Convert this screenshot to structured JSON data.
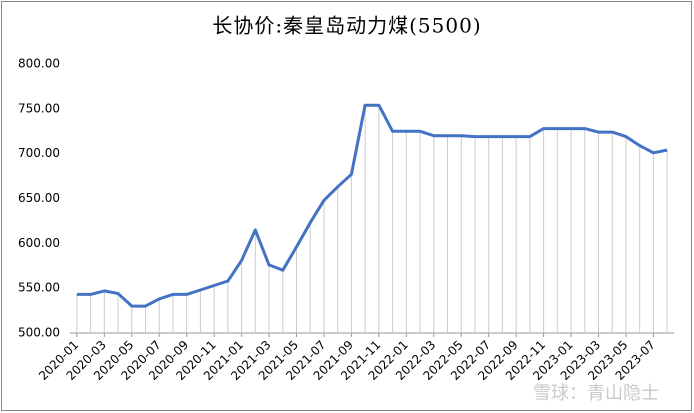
{
  "chart_data": {
    "type": "line",
    "title": "长协价:秦皇岛动力煤(5500)",
    "categories": [
      "2020-01",
      null,
      "2020-03",
      null,
      "2020-05",
      null,
      "2020-07",
      null,
      "2020-09",
      null,
      "2020-11",
      null,
      "2021-01",
      null,
      "2021-03",
      null,
      "2021-05",
      null,
      "2021-07",
      null,
      "2021-09",
      null,
      "2021-11",
      null,
      "2022-01",
      null,
      "2022-03",
      null,
      "2022-05",
      null,
      "2022-07",
      null,
      "2022-09",
      null,
      "2022-11",
      null,
      "2023-01",
      null,
      "2023-03",
      null,
      "2023-05",
      null,
      "2023-07",
      null
    ],
    "values": [
      543,
      543,
      547,
      544,
      530,
      530,
      538,
      543,
      543,
      548,
      553,
      558,
      581,
      615,
      576,
      570,
      596,
      623,
      648,
      663,
      677,
      754,
      754,
      725,
      725,
      725,
      720,
      720,
      720,
      719,
      719,
      719,
      719,
      719,
      728,
      728,
      728,
      728,
      724,
      724,
      719,
      709,
      701,
      704
    ],
    "color": "#4472c4",
    "drop_lines": true,
    "ylim": [
      500,
      800
    ],
    "yticks": [
      {
        "value": 500,
        "label": "500.00"
      },
      {
        "value": 550,
        "label": "550.00"
      },
      {
        "value": 600,
        "label": "600.00"
      },
      {
        "value": 650,
        "label": "650.00"
      },
      {
        "value": 700,
        "label": "700.00"
      },
      {
        "value": 750,
        "label": "750.00"
      },
      {
        "value": 800,
        "label": "800.00"
      }
    ],
    "watermark": "雪球：青山隐士"
  }
}
